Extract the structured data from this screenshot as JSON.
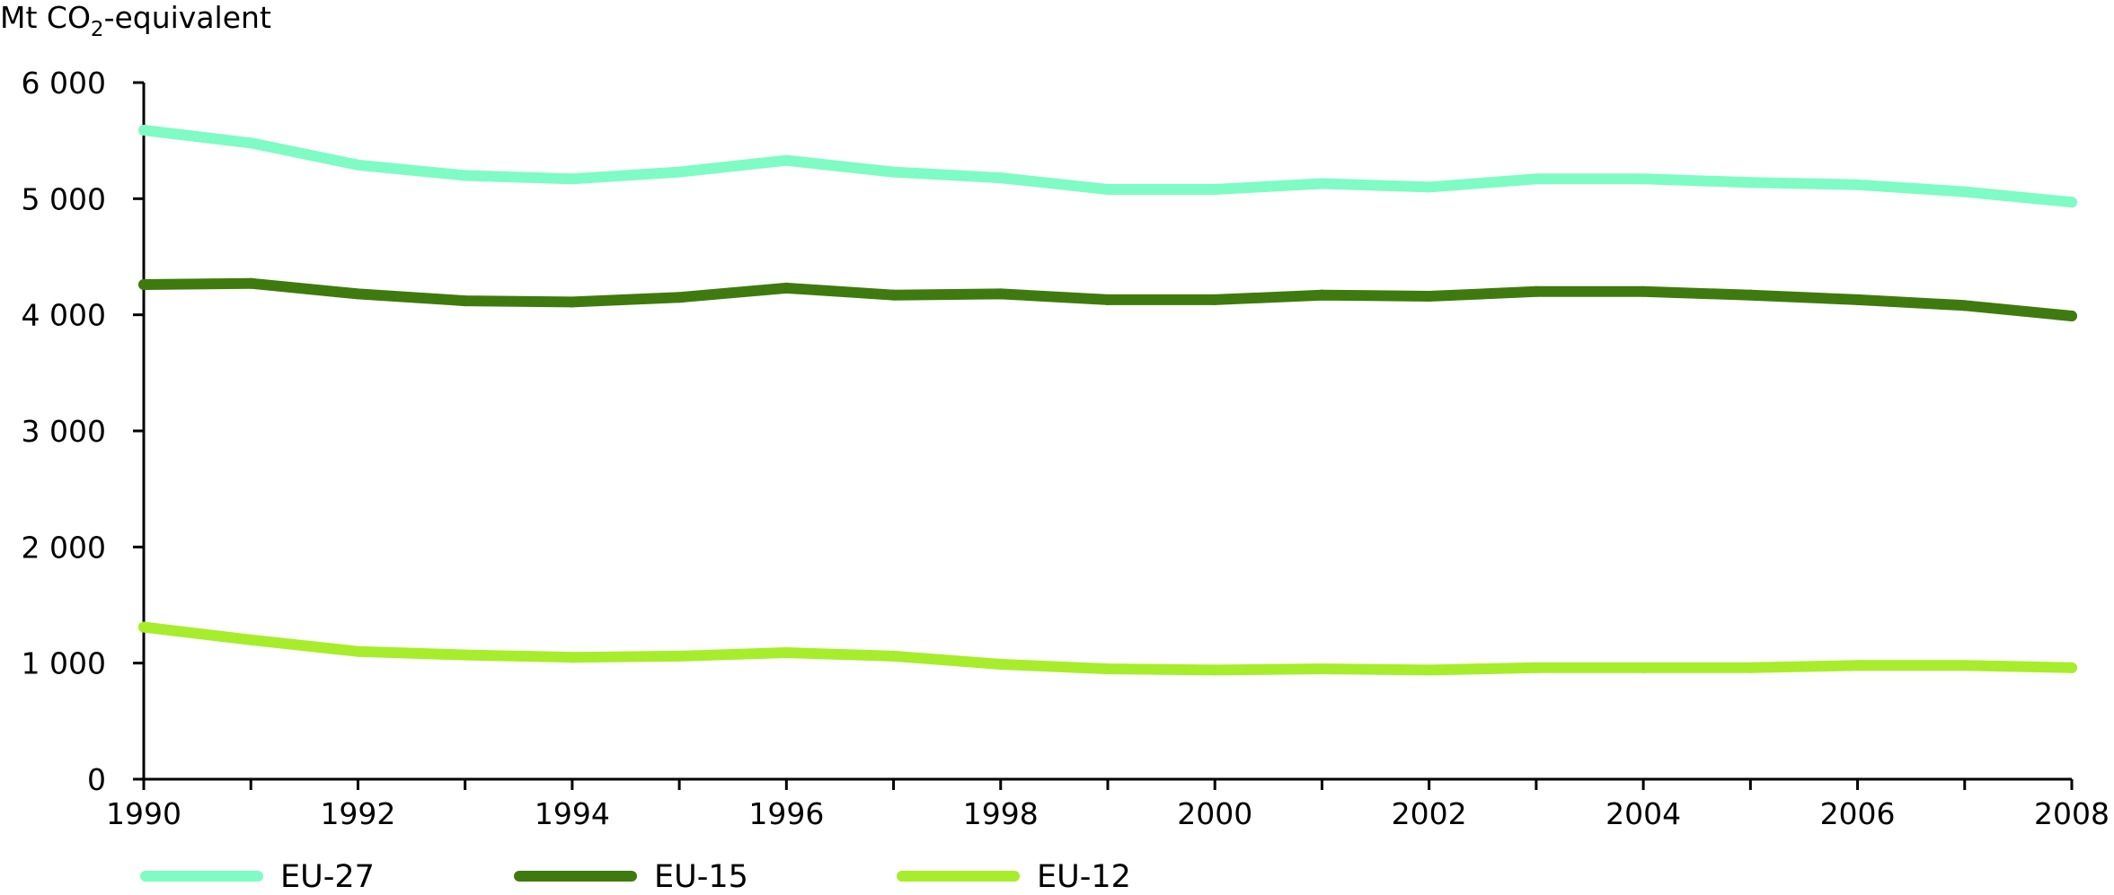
{
  "chart_data": {
    "type": "line",
    "ylabel_prefix": "Mt CO",
    "ylabel_sub": "2",
    "ylabel_suffix": "-equivalent",
    "ylim": [
      0,
      6000
    ],
    "yticks": [
      {
        "value": 0,
        "label": "0"
      },
      {
        "value": 1000,
        "label": "1 000"
      },
      {
        "value": 2000,
        "label": "2 000"
      },
      {
        "value": 3000,
        "label": "3 000"
      },
      {
        "value": 4000,
        "label": "4 000"
      },
      {
        "value": 5000,
        "label": "5 000"
      },
      {
        "value": 6000,
        "label": "6 000"
      }
    ],
    "xlim": [
      1990,
      2008
    ],
    "xticks": [
      1990,
      1992,
      1994,
      1996,
      1998,
      2000,
      2002,
      2004,
      2006,
      2008
    ],
    "x": [
      1990,
      1991,
      1992,
      1993,
      1994,
      1995,
      1996,
      1997,
      1998,
      1999,
      2000,
      2001,
      2002,
      2003,
      2004,
      2005,
      2006,
      2007,
      2008
    ],
    "grid": false,
    "legend_position": "bottom",
    "series": [
      {
        "name": "EU-27",
        "color": "#7ffbc4",
        "values": [
          5590,
          5480,
          5290,
          5200,
          5170,
          5230,
          5330,
          5230,
          5180,
          5080,
          5080,
          5130,
          5100,
          5170,
          5170,
          5140,
          5120,
          5060,
          4970
        ]
      },
      {
        "name": "EU-15",
        "color": "#3f7a0e",
        "values": [
          4260,
          4270,
          4180,
          4120,
          4110,
          4150,
          4230,
          4170,
          4180,
          4130,
          4130,
          4170,
          4160,
          4200,
          4200,
          4170,
          4130,
          4080,
          3990
        ]
      },
      {
        "name": "EU-12",
        "color": "#a7ed2b",
        "values": [
          1310,
          1200,
          1100,
          1070,
          1050,
          1060,
          1090,
          1060,
          990,
          950,
          940,
          950,
          940,
          960,
          960,
          960,
          980,
          980,
          960
        ]
      }
    ]
  }
}
